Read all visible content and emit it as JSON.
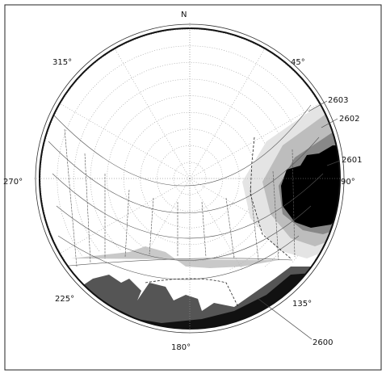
{
  "compass": {
    "north": "N",
    "angles": [
      "315°",
      "45°",
      "270°",
      "90°",
      "225°",
      "135°",
      "180°"
    ]
  },
  "horizons": [
    "2603",
    "2602",
    "2601",
    "2600"
  ]
}
